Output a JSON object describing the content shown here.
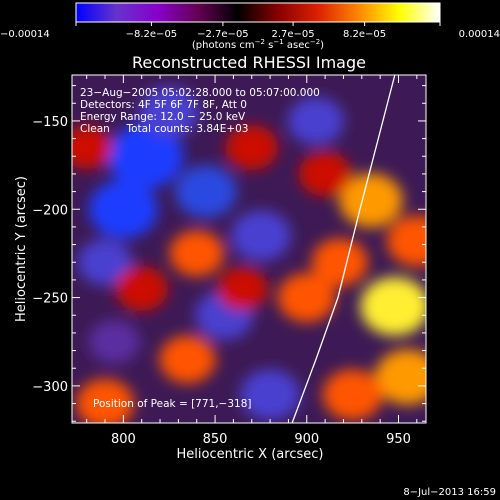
{
  "chart_data": {
    "type": "heatmap",
    "title": "Reconstructed RHESSI Image",
    "xlabel": "Heliocentric X (arcsec)",
    "ylabel": "Heliocentric Y (arcsec)",
    "xlim": [
      772,
      965
    ],
    "ylim": [
      -321,
      -124
    ],
    "x_ticks": [
      800,
      850,
      900,
      950
    ],
    "x_tick_labels": [
      "800",
      "850",
      "900",
      "950"
    ],
    "y_ticks": [
      -150,
      -200,
      -250,
      -300
    ],
    "y_tick_labels": [
      "−150",
      "−200",
      "−250",
      "−300"
    ],
    "colorbar": {
      "min": -0.00014,
      "max": 0.00014,
      "ticks": [
        -0.00014,
        -8.2e-05,
        -2.7e-05,
        2.7e-05,
        8.2e-05,
        0.00014
      ],
      "tick_labels": [
        "−0.00014",
        "−8.2e−05",
        "−2.7e−05",
        "2.7e−05",
        "8.2e−05",
        "0.00014"
      ],
      "units_main": "(photons cm",
      "units_exp1": "−2",
      "units_mid": " s",
      "units_exp2": "−1",
      "units_mid2": " asec",
      "units_exp3": "−2",
      "units_end": ")",
      "colors": [
        "#0000ff",
        "#6633cc",
        "#8800cc",
        "#660055",
        "#000000",
        "#880000",
        "#dd2200",
        "#ff8800",
        "#ffff00",
        "#ffffff"
      ]
    },
    "annotations": [
      "23−Aug−2005 05:02:28.000 to 05:07:00.000",
      "Detectors: 4F 5F 6F 7F 8F, Att 0",
      "Energy Range: 12.0 − 25.0 keV",
      "Clean     Total counts: 3.84E+03"
    ],
    "peak_label": "Position of Peak = [771,−318]",
    "limb_curve": [
      [
        892,
        -321
      ],
      [
        905,
        -285
      ],
      [
        917,
        -250
      ],
      [
        929,
        -200
      ],
      [
        939,
        -160
      ],
      [
        948,
        -124
      ]
    ],
    "blobs": [
      {
        "x": 812,
        "y": -170,
        "v": -1.0
      },
      {
        "x": 800,
        "y": -200,
        "v": -0.8
      },
      {
        "x": 790,
        "y": -230,
        "v": -0.4
      },
      {
        "x": 845,
        "y": -190,
        "v": -0.6
      },
      {
        "x": 875,
        "y": -215,
        "v": -0.55
      },
      {
        "x": 855,
        "y": -260,
        "v": -0.5
      },
      {
        "x": 880,
        "y": -305,
        "v": -0.55
      },
      {
        "x": 795,
        "y": -275,
        "v": -0.3
      },
      {
        "x": 905,
        "y": -150,
        "v": -0.45
      },
      {
        "x": 825,
        "y": -145,
        "v": -0.55
      },
      {
        "x": 870,
        "y": -165,
        "v": 0.35
      },
      {
        "x": 840,
        "y": -225,
        "v": 0.4
      },
      {
        "x": 810,
        "y": -245,
        "v": 0.35
      },
      {
        "x": 780,
        "y": -165,
        "v": 0.3
      },
      {
        "x": 835,
        "y": -285,
        "v": 0.45
      },
      {
        "x": 790,
        "y": -310,
        "v": 0.5
      },
      {
        "x": 865,
        "y": -245,
        "v": 0.3
      },
      {
        "x": 900,
        "y": -250,
        "v": 0.5
      },
      {
        "x": 935,
        "y": -195,
        "v": 0.65
      },
      {
        "x": 948,
        "y": -255,
        "v": 0.8
      },
      {
        "x": 960,
        "y": -218,
        "v": 0.55
      },
      {
        "x": 955,
        "y": -295,
        "v": 0.7
      },
      {
        "x": 925,
        "y": -305,
        "v": 0.55
      },
      {
        "x": 918,
        "y": -230,
        "v": 0.45
      },
      {
        "x": 910,
        "y": -180,
        "v": 0.35
      }
    ]
  },
  "footer_timestamp": "8−Jul−2013 16:59"
}
